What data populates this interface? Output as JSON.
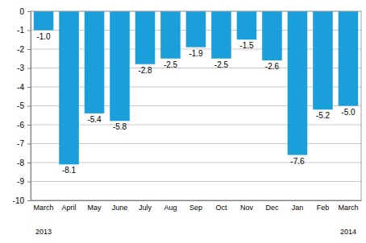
{
  "chart_data": {
    "type": "bar",
    "categories": [
      "March",
      "April",
      "May",
      "June",
      "July",
      "Aug",
      "Sep",
      "Oct",
      "Nov",
      "Dec",
      "Jan",
      "Feb",
      "March"
    ],
    "values": [
      -1.0,
      -8.1,
      -5.4,
      -5.8,
      -2.8,
      -2.5,
      -1.9,
      -2.5,
      -1.5,
      -2.6,
      -7.6,
      -5.2,
      -5.0
    ],
    "value_labels": [
      "-1.0",
      "-8.1",
      "-5.4",
      "-5.8",
      "-2.8",
      "-2.5",
      "-1.9",
      "-2.5",
      "-1.5",
      "-2.6",
      "-7.6",
      "-5.2",
      "-5.0"
    ],
    "color": "#1a9fdb",
    "ylim": [
      -10,
      0
    ],
    "yticks": [
      0,
      -1,
      -2,
      -3,
      -4,
      -5,
      -6,
      -7,
      -8,
      -9,
      -10
    ],
    "grid": true,
    "data_labels": true,
    "annotations": [
      "2013",
      "2014"
    ]
  }
}
